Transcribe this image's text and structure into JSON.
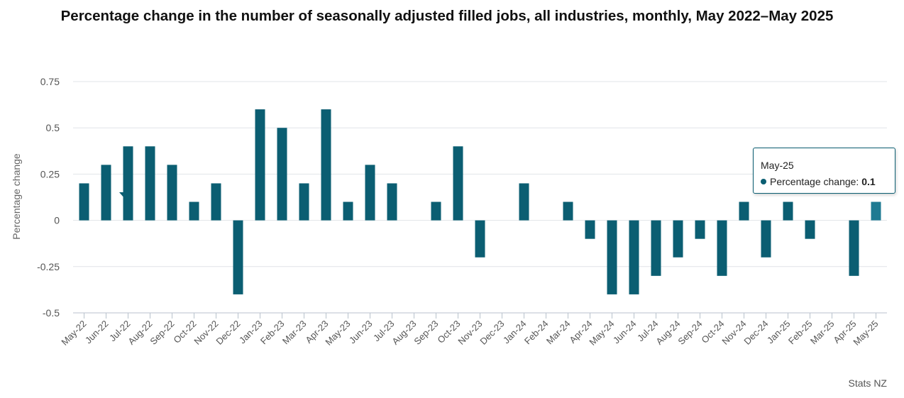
{
  "chart_data": {
    "type": "bar",
    "title": "Percentage change in the number of seasonally adjusted filled jobs, all industries, monthly, May 2022–May 2025",
    "xlabel": "",
    "ylabel": "Percentage change",
    "ylim": [
      -0.5,
      0.75
    ],
    "yticks": [
      "0.75",
      "0.5",
      "0.25",
      "0",
      "-0.25",
      "-0.5"
    ],
    "grid": true,
    "legend": "none",
    "bar_color": "#0b5e72",
    "highlight_color": "#1e7a92",
    "categories": [
      "May-22",
      "Jun-22",
      "Jul-22",
      "Aug-22",
      "Sep-22",
      "Oct-22",
      "Nov-22",
      "Dec-22",
      "Jan-23",
      "Feb-23",
      "Mar-23",
      "Apr-23",
      "May-23",
      "Jun-23",
      "Jul-23",
      "Aug-23",
      "Sep-23",
      "Oct-23",
      "Nov-23",
      "Dec-23",
      "Jan-24",
      "Feb-24",
      "Mar-24",
      "Apr-24",
      "May-24",
      "Jun-24",
      "Jul-24",
      "Aug-24",
      "Sep-24",
      "Oct-24",
      "Nov-24",
      "Dec-24",
      "Jan-25",
      "Feb-25",
      "Mar-25",
      "Apr-25",
      "May-25"
    ],
    "series": [
      {
        "values": [
          0.2,
          0.3,
          0.4,
          0.4,
          0.3,
          0.1,
          0.2,
          -0.4,
          0.6,
          0.5,
          0.2,
          0.6,
          0.1,
          0.3,
          0.2,
          0.0,
          0.1,
          0.4,
          -0.2,
          0.0,
          0.2,
          0.0,
          0.1,
          -0.1,
          -0.4,
          -0.4,
          -0.3,
          -0.2,
          -0.1,
          -0.3,
          0.1,
          -0.2,
          0.1,
          -0.1,
          0.0,
          -0.3,
          0.1
        ]
      }
    ],
    "tooltip": {
      "category": "May-25",
      "label": "Percentage change:",
      "value": "0.1"
    },
    "source": "Stats NZ"
  }
}
